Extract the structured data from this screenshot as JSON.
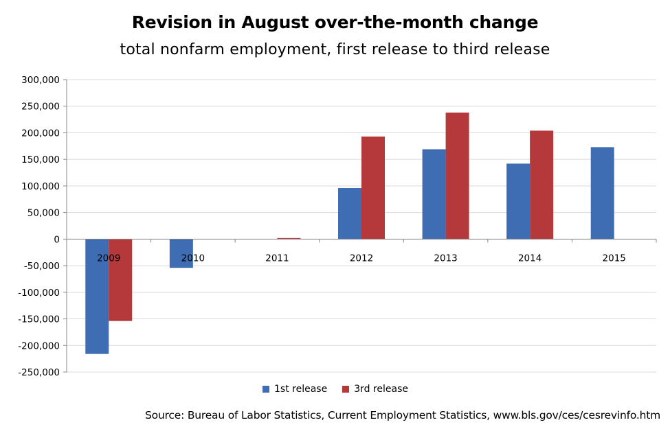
{
  "chart_data": {
    "type": "bar",
    "title": "Revision in August over-the-month change",
    "subtitle": "total nonfarm employment, first release to third release",
    "categories": [
      "2009",
      "2010",
      "2011",
      "2012",
      "2013",
      "2014",
      "2015"
    ],
    "series": [
      {
        "name": "1st release",
        "color": "#3F6DB3",
        "values": [
          -216000,
          -54000,
          0,
          96000,
          169000,
          142000,
          173000
        ]
      },
      {
        "name": "3rd release",
        "color": "#B5393B",
        "values": [
          -154000,
          0,
          2000,
          193000,
          238000,
          204000,
          null
        ]
      }
    ],
    "y_ticks": [
      "300,000",
      "250,000",
      "200,000",
      "150,000",
      "100,000",
      "50,000",
      "0",
      "-50,000",
      "-100,000",
      "-150,000",
      "-200,000",
      "-250,000"
    ],
    "ylim": [
      -250000,
      300000
    ],
    "y_step": 50000,
    "grid": true,
    "legend_position": "bottom",
    "source": "Source: Bureau of Labor Statistics, Current Employment Statistics, www.bls.gov/ces/cesrevinfo.htm"
  }
}
